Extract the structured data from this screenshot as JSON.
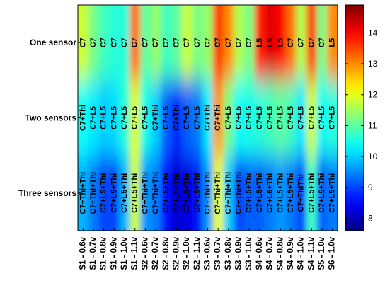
{
  "chart_data": {
    "type": "heatmap",
    "title": "",
    "xlabel": "",
    "ylabel": "",
    "rows": [
      "One sensor",
      "Two sensors",
      "Three sensors"
    ],
    "columns": [
      "S1 - 0.6v",
      "S1 - 0.7v",
      "S1 - 0.8v",
      "S1 - 0.9v",
      "S1 - 1.0v",
      "S1 - 1.1v",
      "S2 - 0.6v",
      "S2 - 0.7v",
      "S2 - 0.8v",
      "S2 - 0.9v",
      "S2 - 1.0v",
      "S2 - 1.1v",
      "S3 - 0.6v",
      "S3 - 0.7v",
      "S3 - 0.8v",
      "S3 - 0.9v",
      "S3 - 1.0v",
      "S4 - 0.6v",
      "S4 - 0.7v",
      "S4 - 0.8v",
      "S4 - 0.9v",
      "S4 - 1.0v",
      "S4 - 1.1v",
      "S5 - 1.0v",
      "S6 - 1.0v"
    ],
    "cell_labels": [
      [
        "C7",
        "C7",
        "C7",
        "C7",
        "C7",
        "C7",
        "C7",
        "C7",
        "C7",
        "C7",
        "C7",
        "C7",
        "C7",
        "C7",
        "C7",
        "C7",
        "C7",
        "L5",
        "L5",
        "L5",
        "C7",
        "C7",
        "C7",
        "C7",
        "L5"
      ],
      [
        "C7+Thi",
        "C7+L5",
        "C7+L5",
        "C7+L5",
        "C7+L5",
        "C7+L5",
        "C7+L5",
        "C7+Thi",
        "C7+L5",
        "C7+Thi",
        "C7+L5",
        "C7+L5",
        "C7+Thi",
        "C7+Thi",
        "C7+L5",
        "C7+L5",
        "C7+L5",
        "C7+L5",
        "C7+L5",
        "C7+L5",
        "C7+L5",
        "C7+L5",
        "C7+L5",
        "C7+L5",
        "C7+L5"
      ],
      [
        "C7+Thi+Thi",
        "C7+Thi+Thi",
        "C7+L5+Thi",
        "C7+L5+Thi",
        "C7+L5+Thi",
        "C7+L5+Thi",
        "C7+Thi+Thi",
        "C7+Thi+Thi",
        "C7+L5+Thi",
        "C7+L5+Thi",
        "C7+L5+Thi",
        "C7+L5+Thi",
        "C7+Thi+Thi",
        "C7+Thi+Thi",
        "C7+Thi+Thi",
        "C7+Thi+Thi",
        "C7+L5+Thi",
        "C7+L5+Thi",
        "C7+L5+Thi",
        "C7+L5+Thi",
        "C7+L5+Thi",
        "C7+ThiThi",
        "C7+L5+Thi",
        "C7+L5+Thi",
        "C7+L5+Thi"
      ]
    ],
    "values": [
      [
        11.8,
        11.2,
        10.8,
        10.6,
        10.6,
        13.2,
        11.0,
        11.4,
        10.8,
        11.0,
        11.8,
        11.2,
        11.4,
        13.6,
        13.0,
        11.6,
        11.2,
        13.8,
        14.2,
        14.0,
        13.2,
        11.6,
        13.6,
        11.2,
        13.0
      ],
      [
        10.4,
        10.2,
        10.0,
        10.1,
        10.6,
        11.9,
        10.5,
        10.0,
        9.2,
        8.8,
        9.2,
        9.4,
        10.2,
        12.9,
        11.2,
        10.4,
        10.5,
        10.6,
        10.8,
        11.0,
        10.8,
        10.2,
        11.8,
        10.4,
        10.6
      ],
      [
        9.8,
        9.4,
        9.0,
        9.0,
        9.8,
        11.8,
        9.6,
        9.4,
        8.6,
        8.2,
        8.3,
        8.6,
        9.6,
        12.0,
        10.0,
        9.0,
        9.2,
        9.2,
        9.4,
        9.6,
        9.4,
        9.0,
        10.8,
        9.2,
        9.4
      ]
    ],
    "colorbar": {
      "min": 7.6,
      "max": 14.9,
      "ticks": [
        8,
        9,
        10,
        11,
        12,
        13,
        14
      ]
    },
    "colormap": "jet",
    "smooth": true
  }
}
